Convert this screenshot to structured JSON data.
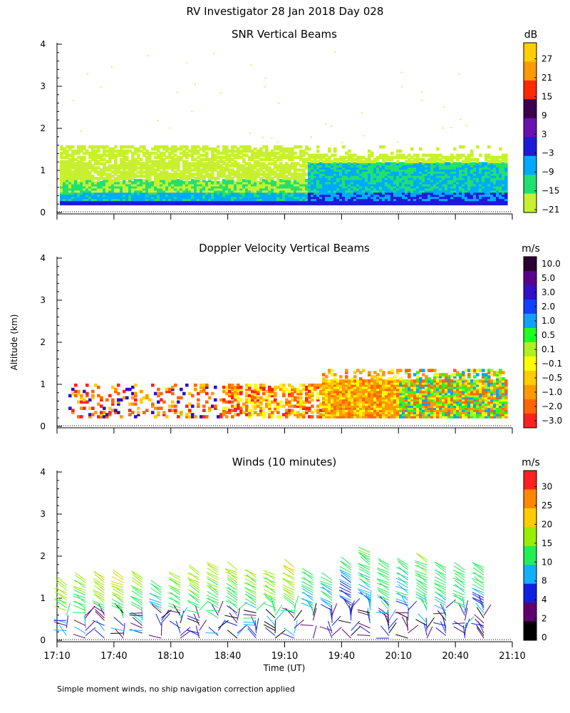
{
  "figure": {
    "title": "RV Investigator  28 Jan 2018 Day 028",
    "footnote": "Simple moment winds, no ship navigation correction applied",
    "ylabel": "Altitude (km)",
    "xlabel": "Time (UT)",
    "x_ticks": [
      "17:10",
      "17:40",
      "18:10",
      "18:40",
      "19:10",
      "19:40",
      "20:10",
      "20:40",
      "21:10"
    ],
    "y_ticks": [
      "0",
      "1",
      "2",
      "3",
      "4"
    ]
  },
  "chart_data": [
    {
      "type": "heatmap",
      "title": "SNR Vertical Beams",
      "units": "dB",
      "ylim": [
        0,
        4
      ],
      "colorbar_labels": [
        "27",
        "21",
        "15",
        "9",
        "3",
        "−3",
        "−9",
        "−15",
        "−21"
      ],
      "colors": [
        "#ffd000",
        "#ff9900",
        "#ff2a00",
        "#3c0050",
        "#6a10b0",
        "#1c1cd8",
        "#00aaff",
        "#22e070",
        "#c8f030"
      ],
      "echo_top_km": 1.55
    },
    {
      "type": "heatmap",
      "title": "Doppler Velocity Vertical Beams",
      "units": "m/s",
      "ylim": [
        0,
        4
      ],
      "colorbar_labels": [
        "10.0",
        "5.0",
        "3.0",
        "2.0",
        "1.0",
        "0.5",
        "0.1",
        "−0.1",
        "−0.5",
        "−1.0",
        "−2.0",
        "−3.0"
      ],
      "colors": [
        "#2a0030",
        "#5a008a",
        "#3010c8",
        "#1040ff",
        "#10a0ff",
        "#20ff20",
        "#b0f020",
        "#ffff00",
        "#ffcc00",
        "#ff9900",
        "#ff6600",
        "#ff2020"
      ],
      "echo_top_km": 1.35
    },
    {
      "type": "barbs",
      "title": "Winds (10 minutes)",
      "units": "m/s",
      "ylim": [
        0,
        4
      ],
      "interval_minutes": 10,
      "colorbar_labels": [
        "30",
        "25",
        "20",
        "15",
        "10",
        "8",
        "4",
        "2",
        "0"
      ],
      "colors": [
        "#ff2020",
        "#ff8800",
        "#ffcc00",
        "#99ee00",
        "#22ee55",
        "#10b0ff",
        "#1020e0",
        "#600070",
        "#000000"
      ],
      "columns": [
        {
          "time": "17:15",
          "top_km": 1.35,
          "speed": 18
        },
        {
          "time": "17:25",
          "top_km": 1.45,
          "speed": 16
        },
        {
          "time": "17:35",
          "top_km": 1.5,
          "speed": 18
        },
        {
          "time": "17:45",
          "top_km": 1.55,
          "speed": 20
        },
        {
          "time": "17:55",
          "top_km": 1.5,
          "speed": 17
        },
        {
          "time": "18:05",
          "top_km": 1.3,
          "speed": 12
        },
        {
          "time": "18:15",
          "top_km": 1.5,
          "speed": 16
        },
        {
          "time": "18:25",
          "top_km": 1.65,
          "speed": 18
        },
        {
          "time": "18:35",
          "top_km": 1.75,
          "speed": 17
        },
        {
          "time": "18:45",
          "top_km": 1.7,
          "speed": 17
        },
        {
          "time": "18:55",
          "top_km": 1.6,
          "speed": 16
        },
        {
          "time": "19:05",
          "top_km": 1.6,
          "speed": 17
        },
        {
          "time": "19:15",
          "top_km": 1.75,
          "speed": 19
        },
        {
          "time": "19:25",
          "top_km": 1.6,
          "speed": 13
        },
        {
          "time": "19:35",
          "top_km": 1.45,
          "speed": 11
        },
        {
          "time": "19:45",
          "top_km": 1.8,
          "speed": 10
        },
        {
          "time": "19:55",
          "top_km": 2.1,
          "speed": 13
        },
        {
          "time": "20:05",
          "top_km": 1.85,
          "speed": 13
        },
        {
          "time": "20:15",
          "top_km": 1.8,
          "speed": 11
        },
        {
          "time": "20:25",
          "top_km": 1.95,
          "speed": 15
        },
        {
          "time": "20:35",
          "top_km": 1.75,
          "speed": 13
        },
        {
          "time": "20:45",
          "top_km": 1.7,
          "speed": 14
        },
        {
          "time": "20:55",
          "top_km": 1.75,
          "speed": 12
        }
      ]
    }
  ]
}
